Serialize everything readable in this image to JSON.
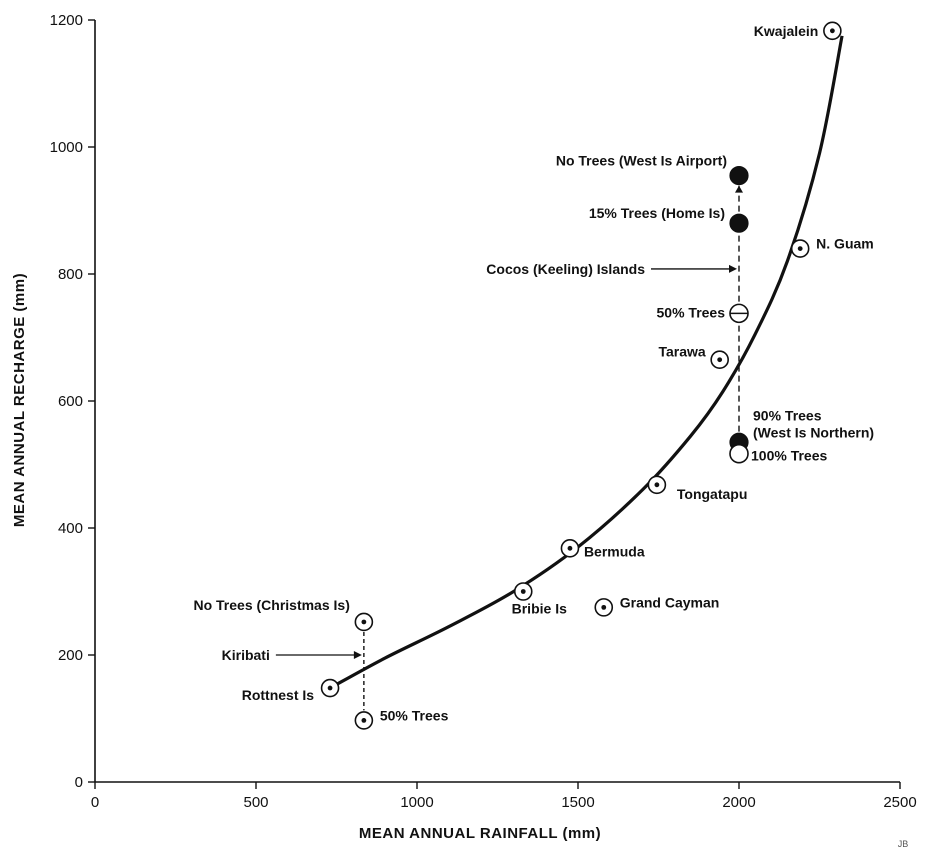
{
  "chart_data": {
    "type": "scatter",
    "xlabel": "MEAN ANNUAL RAINFALL (mm)",
    "ylabel": "MEAN ANNUAL RECHARGE (mm)",
    "xlim": [
      0,
      2500
    ],
    "ylim": [
      0,
      1200
    ],
    "x_ticks": [
      0,
      500,
      1000,
      1500,
      2000,
      2500
    ],
    "y_ticks": [
      0,
      200,
      400,
      600,
      800,
      1000,
      1200
    ],
    "grid": false,
    "corner_mark": "JB",
    "points": [
      {
        "label": "Kwajalein",
        "x": 2290,
        "y": 1183,
        "marker": "dotted-circle"
      },
      {
        "label": "N. Guam",
        "x": 2190,
        "y": 840,
        "marker": "dotted-circle"
      },
      {
        "label": "Tarawa",
        "x": 1940,
        "y": 665,
        "marker": "dotted-circle"
      },
      {
        "label": "Tongatapu",
        "x": 1745,
        "y": 468,
        "marker": "dotted-circle"
      },
      {
        "label": "Bermuda",
        "x": 1475,
        "y": 368,
        "marker": "dotted-circle"
      },
      {
        "label": "Bribie Is",
        "x": 1330,
        "y": 300,
        "marker": "dotted-circle"
      },
      {
        "label": "Grand Cayman",
        "x": 1580,
        "y": 275,
        "marker": "dotted-circle"
      },
      {
        "label": "Rottnest Is",
        "x": 730,
        "y": 148,
        "marker": "dotted-circle"
      },
      {
        "label": "No Trees (Christmas Is)",
        "x": 835,
        "y": 252,
        "marker": "dotted-circle"
      },
      {
        "label": "50% Trees",
        "x": 835,
        "y": 97,
        "marker": "dotted-circle"
      },
      {
        "label": "No Trees (West Is Airport)",
        "x": 2000,
        "y": 955,
        "marker": "filled"
      },
      {
        "label": "15% Trees (Home Is)",
        "x": 2000,
        "y": 880,
        "marker": "filled"
      },
      {
        "label": "50% Trees",
        "x": 2000,
        "y": 738,
        "marker": "half"
      },
      {
        "label": "90% Trees\n(West Is Northern)",
        "x": 2000,
        "y": 535,
        "marker": "filled"
      },
      {
        "label": "100% Trees",
        "x": 2000,
        "y": 517,
        "marker": "open"
      }
    ],
    "group_labels": [
      {
        "label": "Cocos (Keeling) Islands",
        "x": 2000,
        "y": 808
      },
      {
        "label": "Kiribati",
        "x": 835,
        "y": 200
      }
    ],
    "curve": {
      "name": "",
      "x": [
        730,
        900,
        1100,
        1300,
        1500,
        1700,
        1850,
        1950,
        2050,
        2150,
        2250,
        2320
      ],
      "y": [
        148,
        195,
        245,
        300,
        370,
        460,
        545,
        615,
        705,
        820,
        990,
        1175
      ]
    }
  }
}
